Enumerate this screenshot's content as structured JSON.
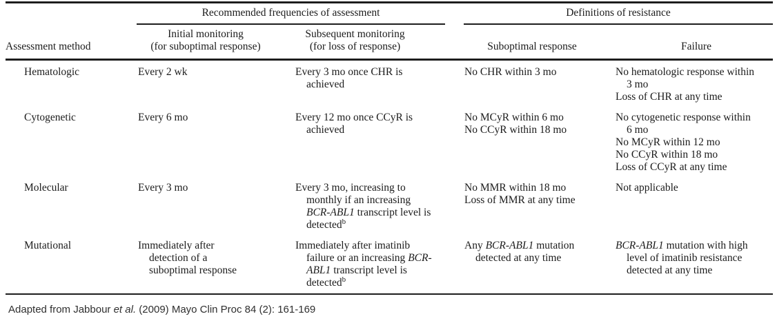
{
  "colors": {
    "background": "#ffffff",
    "text": "#1b1b1b",
    "rule": "#1d1d1d",
    "footer_text": "#2f2f2f"
  },
  "table": {
    "group_headers": [
      "Recommended frequencies of assessment",
      "Definitions of resistance"
    ],
    "columns": [
      "Assessment method",
      "Initial monitoring\n(for suboptimal response)",
      "Subsequent monitoring\n(for loss of response)",
      "Suboptimal response",
      "Failure"
    ],
    "rows": [
      {
        "method": "Hematologic",
        "initial": [
          "Every 2 wk"
        ],
        "subsequent": [
          "Every 3 mo once CHR is achieved"
        ],
        "suboptimal": [
          "No CHR within 3 mo"
        ],
        "failure": [
          "No hematologic response within 3 mo",
          "Loss of CHR at any time"
        ]
      },
      {
        "method": "Cytogenetic",
        "initial": [
          "Every 6 mo"
        ],
        "subsequent": [
          "Every 12 mo once CCyR is achieved"
        ],
        "suboptimal": [
          "No MCyR within 6 mo",
          "No CCyR within 18 mo"
        ],
        "failure": [
          "No cytogenetic response within 6 mo",
          "No MCyR within 12 mo",
          "No CCyR within 18 mo",
          "Loss of CCyR at any time"
        ]
      },
      {
        "method": "Molecular",
        "initial": [
          "Every 3 mo"
        ],
        "subsequent": [
          "Every 3 mo, increasing to monthly if an increasing *BCR-ABL1* transcript level is detected^b^"
        ],
        "suboptimal": [
          "No MMR within 18 mo",
          "Loss of MMR at any time"
        ],
        "failure": [
          "Not applicable"
        ]
      },
      {
        "method": "Mutational",
        "initial": [
          "Immediately after detection of a suboptimal response"
        ],
        "subsequent": [
          "Immediately after imatinib failure or an increasing *BCR-ABL1* transcript level is detected^b^"
        ],
        "suboptimal": [
          "Any *BCR-ABL1* mutation detected at any time"
        ],
        "failure": [
          "*BCR-ABL1* mutation with high level of imatinib resistance detected at any time"
        ]
      }
    ]
  },
  "footer": {
    "text": "Adapted from Jabbour *et al.* (2009) Mayo Clin Proc 84 (2): 161-169"
  }
}
